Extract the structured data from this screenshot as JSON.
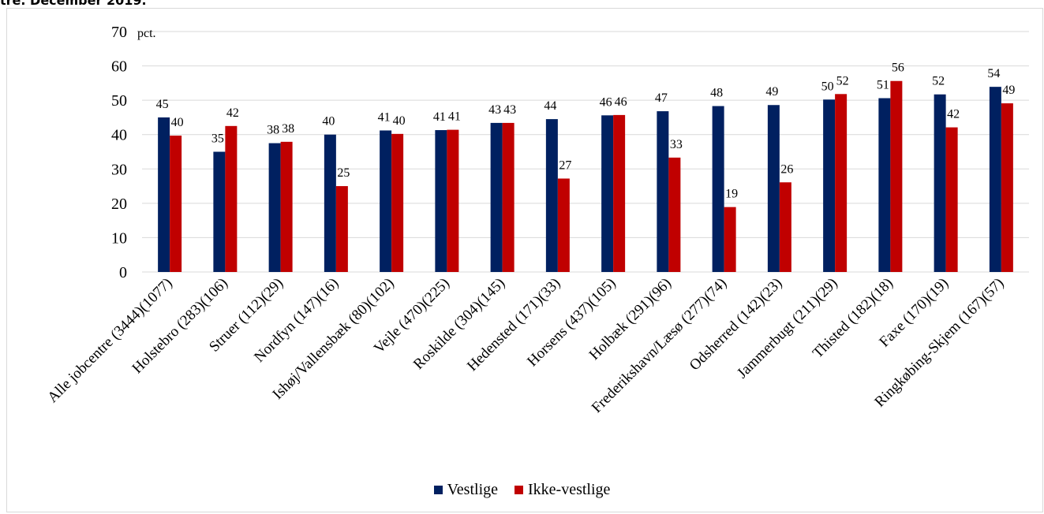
{
  "caption": "tre. December 2019.",
  "chart_data": {
    "type": "bar",
    "unit_label": "pct.",
    "ylim": [
      0,
      70
    ],
    "yticks": [
      0,
      10,
      20,
      30,
      40,
      50,
      60,
      70
    ],
    "grid": true,
    "legend_position": "bottom",
    "categories": [
      "Alle jobcentre (3444)(1077)",
      "Holstebro (283)(106)",
      "Struer (112)(29)",
      "Nordfyn (147)(16)",
      "Ishøj/Vallensbæk (80)(102)",
      "Vejle (470)(225)",
      "Roskilde (304)(145)",
      "Hedensted (171)(33)",
      "Horsens (437)(105)",
      "Holbæk (291)(96)",
      "Frederikshavn/Læsø (277)(74)",
      "Odsherred (142)(23)",
      "Jammerbugt (211)(29)",
      "Thisted (182)(18)",
      "Faxe (170)(19)",
      "Ringkøbing-Skjem (167)(57)"
    ],
    "series": [
      {
        "name": "Vestlige",
        "color": "#002060",
        "values": [
          45,
          35,
          37.5,
          40,
          41.2,
          41.3,
          43.4,
          44.5,
          45.6,
          46.8,
          48.3,
          48.6,
          50.2,
          50.6,
          51.7,
          53.9
        ],
        "labels": [
          "45",
          "35",
          "38",
          "40",
          "41",
          "41",
          "43",
          "44",
          "46",
          "47",
          "48",
          "49",
          "50",
          "51",
          "52",
          "54"
        ]
      },
      {
        "name": "Ikke-vestlige",
        "color": "#c00000",
        "values": [
          39.7,
          42.5,
          37.9,
          25,
          40.2,
          41.4,
          43.4,
          27.2,
          45.7,
          33.3,
          18.9,
          26.1,
          51.8,
          55.6,
          42.1,
          49.1
        ],
        "labels": [
          "40",
          "42",
          "38",
          "25",
          "40",
          "41",
          "43",
          "27",
          "46",
          "33",
          "19",
          "26",
          "52",
          "56",
          "42",
          "49"
        ]
      }
    ]
  }
}
